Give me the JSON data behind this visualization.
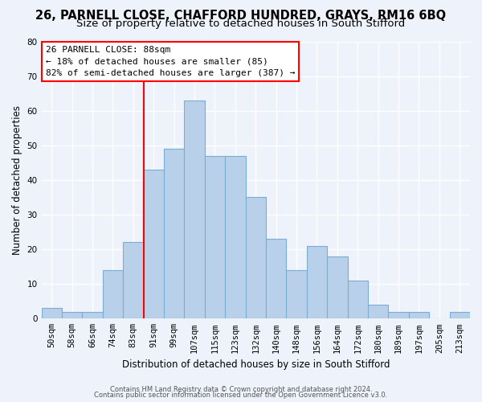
{
  "title": "26, PARNELL CLOSE, CHAFFORD HUNDRED, GRAYS, RM16 6BQ",
  "subtitle": "Size of property relative to detached houses in South Stifford",
  "xlabel": "Distribution of detached houses by size in South Stifford",
  "ylabel": "Number of detached properties",
  "bar_color": "#b8d0ea",
  "bar_edge_color": "#7aadd4",
  "categories": [
    "50sqm",
    "58sqm",
    "66sqm",
    "74sqm",
    "83sqm",
    "91sqm",
    "99sqm",
    "107sqm",
    "115sqm",
    "123sqm",
    "132sqm",
    "140sqm",
    "148sqm",
    "156sqm",
    "164sqm",
    "172sqm",
    "180sqm",
    "189sqm",
    "197sqm",
    "205sqm",
    "213sqm"
  ],
  "values": [
    3,
    2,
    2,
    14,
    22,
    43,
    49,
    63,
    47,
    47,
    35,
    23,
    14,
    21,
    18,
    11,
    4,
    2,
    2,
    0,
    2
  ],
  "red_line_index": 5,
  "annotation_line1": "26 PARNELL CLOSE: 88sqm",
  "annotation_line2": "← 18% of detached houses are smaller (85)",
  "annotation_line3": "82% of semi-detached houses are larger (387) →",
  "ylim": [
    0,
    80
  ],
  "yticks": [
    0,
    10,
    20,
    30,
    40,
    50,
    60,
    70,
    80
  ],
  "footer_line1": "Contains HM Land Registry data © Crown copyright and database right 2024.",
  "footer_line2": "Contains public sector information licensed under the Open Government Licence v3.0.",
  "background_color": "#edf2fb",
  "grid_color": "#ffffff",
  "title_fontsize": 10.5,
  "subtitle_fontsize": 9.5,
  "annotation_fontsize": 8,
  "axis_label_fontsize": 8.5,
  "tick_fontsize": 7.5,
  "ylabel_fontsize": 8.5,
  "footer_fontsize": 6
}
